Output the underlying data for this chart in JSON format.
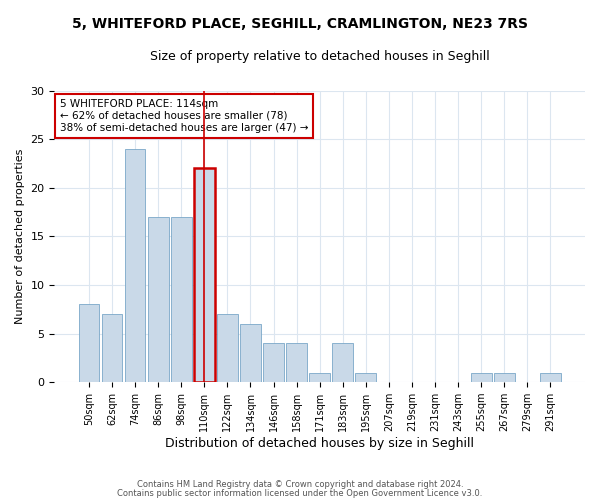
{
  "title1": "5, WHITEFORD PLACE, SEGHILL, CRAMLINGTON, NE23 7RS",
  "title2": "Size of property relative to detached houses in Seghill",
  "xlabel": "Distribution of detached houses by size in Seghill",
  "ylabel": "Number of detached properties",
  "categories": [
    "50sqm",
    "62sqm",
    "74sqm",
    "86sqm",
    "98sqm",
    "110sqm",
    "122sqm",
    "134sqm",
    "146sqm",
    "158sqm",
    "171sqm",
    "183sqm",
    "195sqm",
    "207sqm",
    "219sqm",
    "231sqm",
    "243sqm",
    "255sqm",
    "267sqm",
    "279sqm",
    "291sqm"
  ],
  "values": [
    8,
    7,
    24,
    17,
    17,
    22,
    7,
    6,
    4,
    4,
    1,
    4,
    1,
    0,
    0,
    0,
    0,
    1,
    1,
    0,
    1
  ],
  "bar_color": "#c9d9e8",
  "bar_edge_color": "#7aa8c8",
  "highlight_index": 5,
  "highlight_color": "#cc0000",
  "annotation_line1": "5 WHITEFORD PLACE: 114sqm",
  "annotation_line2": "← 62% of detached houses are smaller (78)",
  "annotation_line3": "38% of semi-detached houses are larger (47) →",
  "annotation_box_color": "#ffffff",
  "annotation_box_edge": "#cc0000",
  "ylim": [
    0,
    30
  ],
  "yticks": [
    0,
    5,
    10,
    15,
    20,
    25,
    30
  ],
  "footnote1": "Contains HM Land Registry data © Crown copyright and database right 2024.",
  "footnote2": "Contains public sector information licensed under the Open Government Licence v3.0.",
  "background_color": "#ffffff",
  "grid_color": "#dce6f0"
}
